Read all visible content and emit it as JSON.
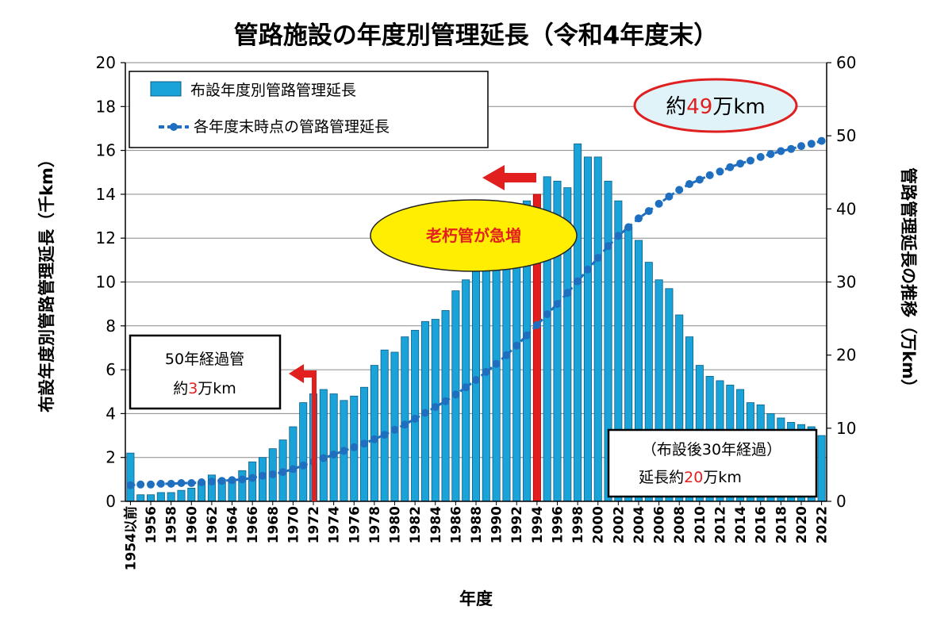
{
  "chart_data": {
    "type": "bar+line",
    "title": "管路施設の年度別管理延長（令和4年度末）",
    "xlabel": "年度",
    "ylabel_left": "布設年度別管路管理延長（千km）",
    "ylabel_right": "管路管理延長の推移（万km）",
    "ylim_left": [
      0,
      20
    ],
    "ylim_right": [
      0,
      60
    ],
    "yticks_left": [
      "0",
      "2",
      "4",
      "6",
      "8",
      "10",
      "12",
      "14",
      "16",
      "18",
      "20"
    ],
    "yticks_right": [
      "0",
      "10",
      "20",
      "30",
      "40",
      "50",
      "60"
    ],
    "categories": [
      "1954以前",
      "1955",
      "1956",
      "1957",
      "1958",
      "1959",
      "1960",
      "1961",
      "1962",
      "1963",
      "1964",
      "1965",
      "1966",
      "1967",
      "1968",
      "1969",
      "1970",
      "1971",
      "1972",
      "1973",
      "1974",
      "1975",
      "1976",
      "1977",
      "1978",
      "1979",
      "1980",
      "1981",
      "1982",
      "1983",
      "1984",
      "1985",
      "1986",
      "1987",
      "1988",
      "1989",
      "1990",
      "1991",
      "1992",
      "1993",
      "1994",
      "1995",
      "1996",
      "1997",
      "1998",
      "1999",
      "2000",
      "2001",
      "2002",
      "2003",
      "2004",
      "2005",
      "2006",
      "2007",
      "2008",
      "2009",
      "2010",
      "2011",
      "2012",
      "2013",
      "2014",
      "2015",
      "2016",
      "2017",
      "2018",
      "2019",
      "2020",
      "2021",
      "2022"
    ],
    "x_tick_labels": [
      "1954以前",
      "1956",
      "1958",
      "1960",
      "1962",
      "1964",
      "1966",
      "1968",
      "1970",
      "1972",
      "1974",
      "1976",
      "1978",
      "1980",
      "1982",
      "1984",
      "1986",
      "1988",
      "1990",
      "1992",
      "1994",
      "1996",
      "1998",
      "2000",
      "2002",
      "2004",
      "2006",
      "2008",
      "2010",
      "2012",
      "2014",
      "2016",
      "2018",
      "2020",
      "2022"
    ],
    "series": [
      {
        "name": "布設年度別管路管理延長",
        "type": "bar",
        "axis": "left",
        "color": "#1aa3d9",
        "values": [
          2.2,
          0.3,
          0.3,
          0.4,
          0.4,
          0.5,
          0.6,
          0.9,
          1.2,
          1.0,
          1.0,
          1.4,
          1.8,
          2.0,
          2.4,
          2.8,
          3.4,
          4.5,
          4.9,
          5.1,
          4.9,
          4.6,
          4.8,
          5.2,
          6.2,
          6.9,
          6.8,
          7.5,
          7.8,
          8.2,
          8.3,
          8.7,
          9.6,
          10.1,
          10.6,
          11.2,
          11.5,
          12.6,
          13.2,
          13.7,
          14.0,
          14.8,
          14.6,
          14.3,
          16.3,
          15.7,
          15.7,
          14.6,
          13.7,
          12.5,
          11.9,
          10.9,
          10.1,
          9.7,
          8.5,
          7.5,
          6.2,
          5.7,
          5.5,
          5.3,
          5.1,
          4.5,
          4.4,
          4.0,
          3.8,
          3.6,
          3.5,
          3.4,
          3.0
        ]
      },
      {
        "name": "各年度末時点の管路管理延長",
        "type": "line",
        "axis": "right",
        "color": "#1f6fc0",
        "values": [
          2.2,
          2.3,
          2.3,
          2.4,
          2.4,
          2.5,
          2.5,
          2.6,
          2.7,
          2.8,
          2.9,
          3.0,
          3.2,
          3.5,
          3.7,
          4.0,
          4.4,
          4.9,
          5.4,
          5.9,
          6.4,
          6.9,
          7.4,
          7.9,
          8.5,
          9.1,
          9.8,
          10.5,
          11.3,
          12.1,
          12.9,
          13.7,
          14.6,
          15.6,
          16.6,
          17.7,
          18.8,
          20.0,
          21.3,
          22.7,
          24.1,
          25.6,
          27.0,
          28.5,
          30.1,
          31.7,
          33.3,
          34.9,
          36.3,
          37.5,
          38.7,
          39.7,
          40.7,
          41.7,
          42.6,
          43.4,
          44.0,
          44.6,
          45.1,
          45.7,
          46.2,
          46.6,
          47.1,
          47.5,
          47.9,
          48.2,
          48.6,
          48.9,
          49.3
        ]
      }
    ],
    "legend_placement": "top-left",
    "grid": true,
    "annotations": {
      "callout_top_right": {
        "prefix": "約",
        "value": "49",
        "suffix": "万km"
      },
      "callout_center": "老朽管が急増",
      "box_left_line1": "50年経過管",
      "box_left_line2": {
        "prefix": "約",
        "value": "3",
        "suffix": "万km"
      },
      "box_right_line1": "（布設後30年経過）",
      "box_right_line2": {
        "prefix": "延長約",
        "value": "20",
        "suffix": "万km"
      }
    }
  }
}
